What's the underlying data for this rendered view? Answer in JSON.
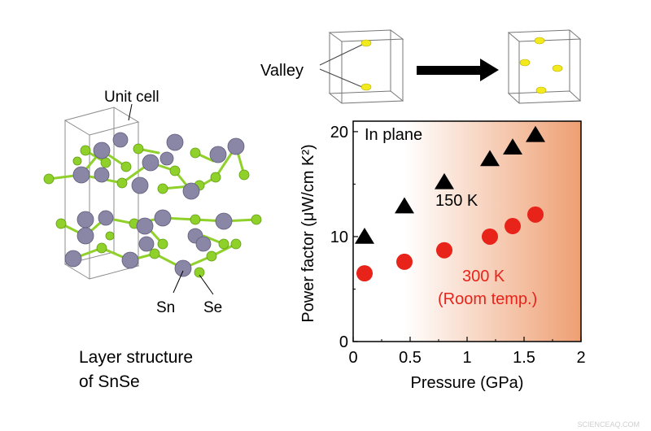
{
  "structure": {
    "unit_cell_label": "Unit cell",
    "sn_label": "Sn",
    "se_label": "Se",
    "caption_line1": "Layer structure",
    "caption_line2": "of SnSe",
    "colors": {
      "sn": "#8a86a6",
      "se": "#8fd12a",
      "bond": "#8fd12a",
      "cell": "#8c8c8c"
    }
  },
  "valley": {
    "label": "Valley",
    "color": "#f2ea1d",
    "arrow_icon": "right-arrow-icon"
  },
  "watermark": "SCIENCEAQ.COM",
  "chart_data": {
    "type": "scatter",
    "xlabel": "Pressure (GPa)",
    "ylabel": "Power factor (μW/cm K²)",
    "xlim": [
      0,
      2
    ],
    "ylim": [
      0,
      21
    ],
    "x_ticks": [
      {
        "value": 0,
        "label": "0"
      },
      {
        "value": 0.5,
        "label": "0.5"
      },
      {
        "value": 1,
        "label": "1"
      },
      {
        "value": 1.5,
        "label": "1.5"
      },
      {
        "value": 2,
        "label": "2"
      }
    ],
    "y_ticks": [
      {
        "value": 0,
        "label": "0"
      },
      {
        "value": 10,
        "label": "10"
      },
      {
        "value": 20,
        "label": "20"
      }
    ],
    "annotation": "In plane",
    "background_gradient": {
      "start_x": 0.45,
      "end_x": 2,
      "colors": [
        "#ffffff",
        "#ee9f73"
      ]
    },
    "series": [
      {
        "name": "150 K",
        "marker": "triangle",
        "color": "#000000",
        "x": [
          0.1,
          0.45,
          0.8,
          1.2,
          1.4,
          1.6
        ],
        "y": [
          10.0,
          12.9,
          15.2,
          17.4,
          18.5,
          19.7
        ]
      },
      {
        "name": "300 K",
        "sublabel": "(Room temp.)",
        "marker": "circle",
        "color": "#e8231a",
        "x": [
          0.1,
          0.45,
          0.8,
          1.2,
          1.4,
          1.6
        ],
        "y": [
          6.5,
          7.6,
          8.7,
          10.0,
          11.0,
          12.1
        ]
      }
    ]
  }
}
